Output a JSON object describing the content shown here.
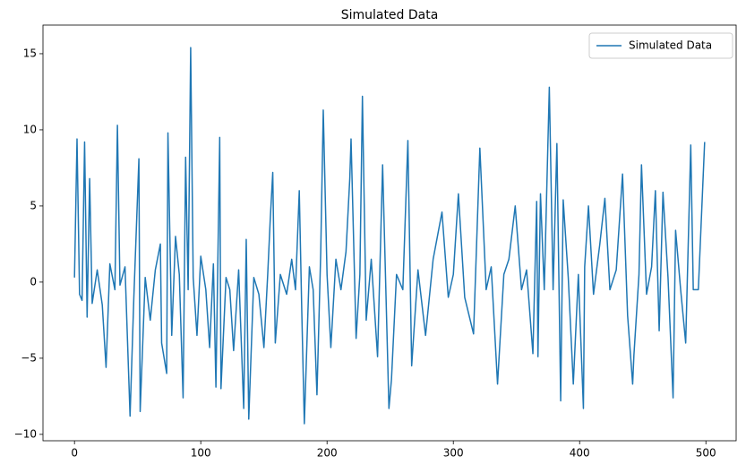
{
  "chart_data": {
    "type": "line",
    "title": "Simulated Data",
    "x": [
      0,
      2,
      4,
      6,
      8,
      10,
      12,
      14,
      18,
      22,
      25,
      28,
      32,
      34,
      36,
      40,
      44,
      47,
      51,
      52,
      56,
      60,
      64,
      68,
      69,
      73,
      74,
      77,
      80,
      83,
      86,
      88,
      90,
      92,
      94,
      97,
      100,
      104,
      107,
      110,
      112,
      115,
      116,
      120,
      123,
      126,
      130,
      134,
      136,
      138,
      142,
      146,
      150,
      153,
      155,
      157,
      159,
      163,
      168,
      172,
      175,
      178,
      180,
      182,
      186,
      189,
      192,
      195,
      197,
      200,
      203,
      207,
      211,
      215,
      218,
      219,
      223,
      226,
      228,
      231,
      235,
      240,
      244,
      249,
      251,
      255,
      260,
      264,
      267,
      272,
      278,
      284,
      291,
      296,
      300,
      304,
      309,
      316,
      321,
      326,
      330,
      335,
      340,
      344,
      349,
      354,
      358,
      363,
      366,
      367,
      369,
      372,
      376,
      379,
      382,
      385,
      387,
      391,
      395,
      399,
      403,
      404,
      407,
      411,
      416,
      420,
      424,
      429,
      434,
      438,
      442,
      443,
      447,
      449,
      453,
      457,
      460,
      463,
      466,
      470,
      474,
      476,
      480,
      484,
      488,
      490,
      494,
      499
    ],
    "series": [
      {
        "name": "Simulated Data",
        "color": "#1f77b4",
        "values": [
          0.3,
          9.4,
          -0.8,
          -1.2,
          9.2,
          -2.3,
          6.8,
          -1.4,
          0.8,
          -1.5,
          -5.6,
          1.2,
          -0.5,
          10.3,
          -0.2,
          1.0,
          -8.8,
          -1.0,
          8.1,
          -8.5,
          0.3,
          -2.5,
          0.8,
          2.5,
          -4.0,
          -6.0,
          9.8,
          -3.5,
          3.0,
          0.5,
          -7.6,
          8.2,
          -0.5,
          15.4,
          0.3,
          -3.5,
          1.7,
          -0.5,
          -4.3,
          1.2,
          -6.9,
          9.5,
          -7.0,
          0.3,
          -0.5,
          -4.5,
          0.8,
          -8.3,
          2.8,
          -9.0,
          0.3,
          -0.8,
          -4.3,
          0.5,
          4.1,
          7.2,
          -4.0,
          0.5,
          -0.8,
          1.5,
          -0.5,
          6.0,
          -2.0,
          -9.3,
          1.0,
          -0.5,
          -7.4,
          2.0,
          11.3,
          0.5,
          -4.3,
          1.5,
          -0.5,
          2.0,
          6.8,
          9.4,
          -3.7,
          0.5,
          12.2,
          -2.5,
          1.5,
          -4.9,
          7.7,
          -8.3,
          -6.4,
          0.5,
          -0.5,
          9.3,
          -5.5,
          0.8,
          -3.5,
          1.5,
          4.6,
          -1.0,
          0.5,
          5.8,
          -1.0,
          -3.4,
          8.8,
          -0.5,
          1.0,
          -6.7,
          0.5,
          1.5,
          5.0,
          -0.5,
          0.8,
          -4.7,
          5.3,
          -4.9,
          5.8,
          -0.5,
          12.8,
          -0.5,
          9.1,
          -7.8,
          5.4,
          0.3,
          -6.7,
          0.5,
          -8.3,
          1.0,
          5.0,
          -0.8,
          2.5,
          5.5,
          -0.5,
          0.8,
          7.1,
          -2.2,
          -6.7,
          -4.8,
          0.5,
          7.7,
          -0.8,
          1.0,
          6.0,
          -3.2,
          5.9,
          0.3,
          -7.6,
          3.4,
          -0.5,
          -4.0,
          9.0,
          -0.5,
          -0.5,
          9.2
        ]
      }
    ],
    "xlim": [
      -24.95,
      523.95
    ],
    "xticks": [
      0,
      100,
      200,
      300,
      400,
      500
    ],
    "ylim": [
      -10.42,
      16.88
    ],
    "yticks": [
      {
        "value": -10,
        "label": "−10"
      },
      {
        "value": -5,
        "label": "−5"
      },
      0,
      5,
      10,
      15
    ],
    "legend": "upper right"
  }
}
